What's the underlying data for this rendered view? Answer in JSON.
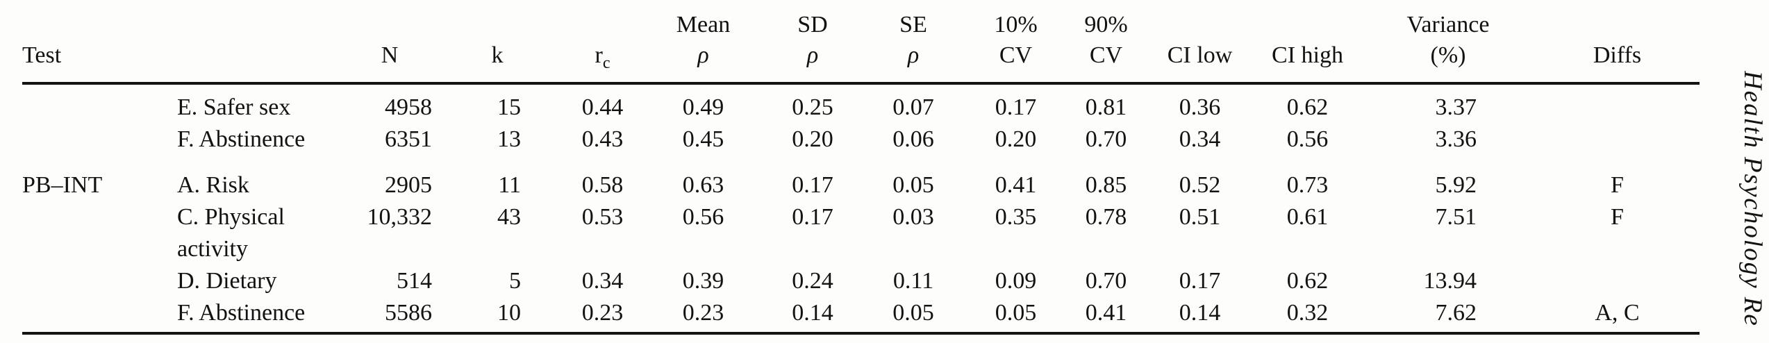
{
  "journal_sidebar": {
    "text": "Health Psychology Re"
  },
  "table": {
    "columns": {
      "test": "Test",
      "n": "N",
      "k": "k",
      "rc_base": "r",
      "rc_sub": "c",
      "mean_line1": "Mean",
      "mean_line2": "ρ",
      "sd_line1": "SD",
      "sd_line2": "ρ",
      "se_line1": "SE",
      "se_line2": "ρ",
      "cv10_line1": "10%",
      "cv10_line2": "CV",
      "cv90_line1": "90%",
      "cv90_line2": "CV",
      "ci_low": "CI low",
      "ci_high": "CI high",
      "variance_line1": "Variance",
      "variance_line2": "(%)",
      "diffs": "Diffs"
    },
    "rows": [
      {
        "test": "",
        "sub": "E. Safer sex",
        "n": "4958",
        "k": "15",
        "rc": "0.44",
        "mean": "0.49",
        "sd": "0.25",
        "se": "0.07",
        "cv10": "0.17",
        "cv90": "0.81",
        "ci_low": "0.36",
        "ci_high": "0.62",
        "variance": "3.37",
        "diffs": ""
      },
      {
        "test": "",
        "sub": "F. Abstinence",
        "n": "6351",
        "k": "13",
        "rc": "0.43",
        "mean": "0.45",
        "sd": "0.20",
        "se": "0.06",
        "cv10": "0.20",
        "cv90": "0.70",
        "ci_low": "0.34",
        "ci_high": "0.56",
        "variance": "3.36",
        "diffs": ""
      },
      {
        "test": "PB–INT",
        "sub": "A. Risk",
        "n": "2905",
        "k": "11",
        "rc": "0.58",
        "mean": "0.63",
        "sd": "0.17",
        "se": "0.05",
        "cv10": "0.41",
        "cv90": "0.85",
        "ci_low": "0.52",
        "ci_high": "0.73",
        "variance": "5.92",
        "diffs": "F"
      },
      {
        "test": "",
        "sub": "C. Physical activity",
        "n": "10,332",
        "k": "43",
        "rc": "0.53",
        "mean": "0.56",
        "sd": "0.17",
        "se": "0.03",
        "cv10": "0.35",
        "cv90": "0.78",
        "ci_low": "0.51",
        "ci_high": "0.61",
        "variance": "7.51",
        "diffs": "F"
      },
      {
        "test": "",
        "sub": "D. Dietary",
        "n": "514",
        "k": "5",
        "rc": "0.34",
        "mean": "0.39",
        "sd": "0.24",
        "se": "0.11",
        "cv10": "0.09",
        "cv90": "0.70",
        "ci_low": "0.17",
        "ci_high": "0.62",
        "variance": "13.94",
        "diffs": ""
      },
      {
        "test": "",
        "sub": "F. Abstinence",
        "n": "5586",
        "k": "10",
        "rc": "0.23",
        "mean": "0.23",
        "sd": "0.14",
        "se": "0.05",
        "cv10": "0.05",
        "cv90": "0.41",
        "ci_low": "0.14",
        "ci_high": "0.32",
        "variance": "7.62",
        "diffs": "A, C"
      }
    ]
  }
}
